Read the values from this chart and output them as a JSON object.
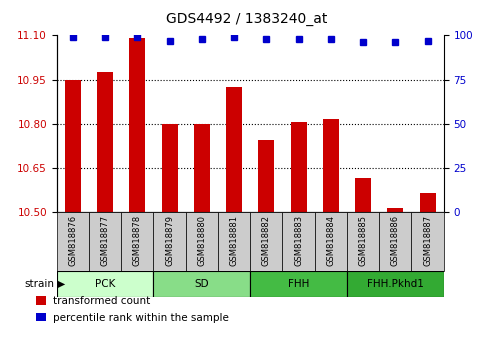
{
  "title": "GDS4492 / 1383240_at",
  "samples": [
    "GSM818876",
    "GSM818877",
    "GSM818878",
    "GSM818879",
    "GSM818880",
    "GSM818881",
    "GSM818882",
    "GSM818883",
    "GSM818884",
    "GSM818885",
    "GSM818886",
    "GSM818887"
  ],
  "bar_values": [
    10.95,
    10.975,
    11.09,
    10.8,
    10.8,
    10.925,
    10.745,
    10.805,
    10.815,
    10.615,
    10.515,
    10.565
  ],
  "percentile_values": [
    99,
    99,
    99,
    97,
    98,
    99,
    98,
    98,
    98,
    96,
    96,
    97
  ],
  "bar_color": "#cc0000",
  "percentile_color": "#0000cc",
  "ylim_left": [
    10.5,
    11.1
  ],
  "ylim_right": [
    0,
    100
  ],
  "yticks_left": [
    10.5,
    10.65,
    10.8,
    10.95,
    11.1
  ],
  "yticks_right": [
    0,
    25,
    50,
    75,
    100
  ],
  "groups": [
    {
      "label": "PCK",
      "start": 0,
      "end": 3,
      "color": "#ccffcc"
    },
    {
      "label": "SD",
      "start": 3,
      "end": 6,
      "color": "#88dd88"
    },
    {
      "label": "FHH",
      "start": 6,
      "end": 9,
      "color": "#44bb44"
    },
    {
      "label": "FHH.Pkhd1",
      "start": 9,
      "end": 12,
      "color": "#33aa33"
    }
  ],
  "legend_items": [
    {
      "label": "transformed count",
      "color": "#cc0000"
    },
    {
      "label": "percentile rank within the sample",
      "color": "#0000cc"
    }
  ],
  "strain_label": "strain",
  "tick_label_bg": "#cccccc"
}
